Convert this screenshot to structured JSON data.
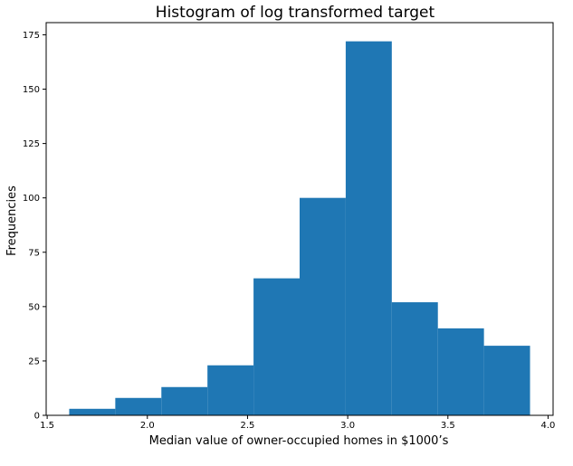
{
  "chart_data": {
    "type": "bar",
    "title": "Histogram of log transformed target",
    "xlabel": "Median value of owner-occupied homes in $1000’s",
    "ylabel": "Frequencies",
    "bin_edges": [
      1.61,
      1.84,
      2.07,
      2.3,
      2.53,
      2.76,
      2.99,
      3.22,
      3.45,
      3.68,
      3.91
    ],
    "values": [
      3,
      8,
      13,
      23,
      63,
      100,
      172,
      52,
      40,
      32
    ],
    "bar_color": "#1f77b4",
    "xlim": [
      1.495,
      4.025
    ],
    "ylim": [
      0,
      180.6
    ],
    "x_ticks": [
      {
        "value": 1.5,
        "label": "1.5"
      },
      {
        "value": 2.0,
        "label": "2.0"
      },
      {
        "value": 2.5,
        "label": "2.5"
      },
      {
        "value": 3.0,
        "label": "3.0"
      },
      {
        "value": 3.5,
        "label": "3.5"
      },
      {
        "value": 4.0,
        "label": "4.0"
      }
    ],
    "y_ticks": [
      {
        "value": 0,
        "label": "0"
      },
      {
        "value": 25,
        "label": "25"
      },
      {
        "value": 50,
        "label": "50"
      },
      {
        "value": 75,
        "label": "75"
      },
      {
        "value": 100,
        "label": "100"
      },
      {
        "value": 125,
        "label": "125"
      },
      {
        "value": 150,
        "label": "150"
      },
      {
        "value": 175,
        "label": "175"
      }
    ],
    "grid": false,
    "legend": "none"
  }
}
